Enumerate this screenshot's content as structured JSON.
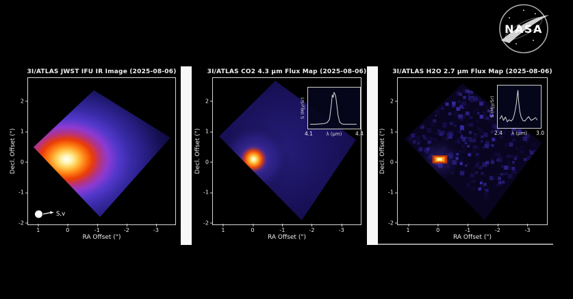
{
  "branding": {
    "nasa_logo_alt": "NASA"
  },
  "figure": {
    "xlabel": "RA Offset (\")",
    "ylabel": "Decl. Offset (\")",
    "xticks": [
      "1",
      "0",
      "-1",
      "-2",
      "-3"
    ],
    "yticks": [
      "2",
      "1",
      "0",
      "-1",
      "-2"
    ],
    "panels": [
      {
        "title": "3I/ATLAS JWST IFU IR Image (2025-08-06)",
        "marker_label": "S,v"
      },
      {
        "title": "3I/ATLAS CO2 4.3 μm Flux Map (2025-08-06)",
        "inset": {
          "ylabel": "S (MJy/Sr)",
          "xlabel": "λ (μm)",
          "xtick_left": "4.1",
          "xtick_right": "4.4"
        }
      },
      {
        "title": "3I/ATLAS H2O 2.7 μm Flux Map (2025-08-06)",
        "inset": {
          "ylabel": "S (MJy/Sr)",
          "xlabel": "λ (μm)",
          "xtick_left": "2.4",
          "xtick_right": "3.0"
        }
      }
    ]
  },
  "colors": {
    "background": "#000000",
    "axis": "#d8d8d8",
    "text": "#f2f2f2",
    "separator_bar": "#f8f8f8",
    "core_white": "#ffffff",
    "core_yellow": "#ffe06a",
    "core_orange": "#ff8c1a",
    "core_red": "#e23a0a",
    "coma_violet": "#7b3bd2",
    "coma_blue": "#372aa4",
    "coma_dark": "#0b0736"
  },
  "chart_data": [
    {
      "id": "jwst-ifu-ir-image",
      "type": "heatmap",
      "title": "3I/ATLAS JWST IFU IR Image (2025-08-06)",
      "xlabel": "RA Offset (\")",
      "ylabel": "Decl. Offset (\")",
      "xticks": [
        1,
        0,
        -1,
        -2,
        -3
      ],
      "yticks": [
        2,
        1,
        0,
        -1,
        -2
      ],
      "xlim": [
        1.4,
        -3.7
      ],
      "ylim": [
        -2.1,
        2.75
      ],
      "peak_position": {
        "ra_offset": 0,
        "decl_offset": 0
      },
      "field_of_view": "rotated-square IFU footprint with pixelated edges",
      "colormap": "black -> dark blue -> violet -> red -> orange -> yellow -> white (low to high intensity)",
      "annotations": [
        "S,v sun/velocity direction marker at bottom-left"
      ],
      "description": "Broad diffuse infrared coma filling the IFU footprint; brightest white-yellow core at (0,0) fading through orange-red into violet-blue halo"
    },
    {
      "id": "co2-flux-map",
      "type": "heatmap",
      "title": "3I/ATLAS CO2 4.3 μm Flux Map (2025-08-06)",
      "xlabel": "RA Offset (\")",
      "ylabel": "Decl. Offset (\")",
      "xticks": [
        1,
        0,
        -1,
        -2,
        -3
      ],
      "yticks": [
        2,
        1,
        0,
        -1,
        -2
      ],
      "xlim": [
        1.4,
        -3.7
      ],
      "ylim": [
        -2.1,
        2.75
      ],
      "peak_position": {
        "ra_offset": 0,
        "decl_offset": 0
      },
      "description": "Compact CO2 emission: small white-yellow core with orange-red ring at (0,0) over a faint uniform blue coma in the rotated-square footprint",
      "inset": {
        "type": "line",
        "xlabel": "λ (μm)",
        "ylabel": "S (MJy/Sr)",
        "xticks": [
          4.1,
          4.4
        ],
        "xlim": [
          4.1,
          4.4
        ],
        "x": [
          4.1,
          4.13,
          4.16,
          4.19,
          4.21,
          4.225,
          4.235,
          4.243,
          4.249,
          4.254,
          4.259,
          4.265,
          4.272,
          4.28,
          4.29,
          4.305,
          4.325,
          4.36,
          4.4
        ],
        "y_relative": [
          0.03,
          0.03,
          0.04,
          0.05,
          0.08,
          0.18,
          0.55,
          0.92,
          0.85,
          1.0,
          0.96,
          0.88,
          0.62,
          0.3,
          0.1,
          0.04,
          0.03,
          0.03,
          0.03
        ],
        "description": "Narrow double-horned CO2 emission band centered near 4.26 μm"
      }
    },
    {
      "id": "h2o-flux-map",
      "type": "heatmap",
      "title": "3I/ATLAS H2O 2.7 μm Flux Map (2025-08-06)",
      "xlabel": "RA Offset (\")",
      "ylabel": "Decl. Offset (\")",
      "xticks": [
        1,
        0,
        -1,
        -2,
        -3
      ],
      "yticks": [
        2,
        1,
        0,
        -1,
        -2
      ],
      "xlim": [
        1.4,
        -3.7
      ],
      "ylim": [
        -2.1,
        2.75
      ],
      "peak_position": {
        "ra_offset": 0,
        "decl_offset": 0
      },
      "description": "Weak noisy H2O map: speckled dark blue-violet pixels with a tiny white-yellow/orange peak at (0,0)",
      "inset": {
        "type": "line",
        "xlabel": "λ (μm)",
        "ylabel": "S (MJy/Sr)",
        "xticks": [
          2.4,
          3.0
        ],
        "xlim": [
          2.4,
          3.0
        ],
        "x": [
          2.4,
          2.43,
          2.46,
          2.49,
          2.52,
          2.55,
          2.58,
          2.61,
          2.63,
          2.65,
          2.665,
          2.68,
          2.69,
          2.7,
          2.72,
          2.74,
          2.77,
          2.8,
          2.83,
          2.86,
          2.9,
          2.94,
          2.97,
          3.0
        ],
        "y_relative": [
          0.16,
          0.26,
          0.12,
          0.22,
          0.08,
          0.14,
          0.1,
          0.16,
          0.28,
          0.45,
          0.62,
          0.88,
          1.0,
          0.7,
          0.38,
          0.22,
          0.12,
          0.1,
          0.17,
          0.23,
          0.12,
          0.16,
          0.2,
          0.13
        ],
        "description": "Sharp H2O emission peak near 2.7 μm over a noisy baseline"
      }
    }
  ]
}
